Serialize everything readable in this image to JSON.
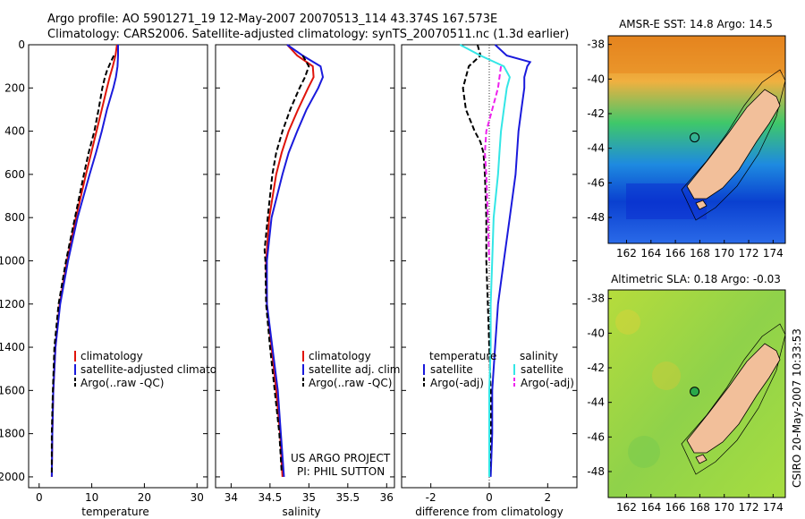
{
  "header": {
    "title_line1": "Argo profile: AO 5901271_19 12-May-2007 20070513_114 43.374S 167.573E",
    "title_line2": "Climatology: CARS2006. Satellite-adjusted climatology: synTS_20070511.nc (1.3d earlier)"
  },
  "side_label": "CSIRO 20-May-2007 10:33:53",
  "colors": {
    "climatology": "#e0140a",
    "satellite": "#1a1adc",
    "argo": "#000000",
    "satellite_salinity_diff": "#33e6e6",
    "argo_salinity_diff": "#ee22ee",
    "land": "#f2bf9a",
    "sst_warm": "#e8902a",
    "sst_mid": "#39c07a",
    "sst_cold": "#0a55d8",
    "sla_field": "#9ad640"
  },
  "chart_data": [
    {
      "type": "line",
      "xlabel": "temperature",
      "xlim": [
        -2,
        32
      ],
      "xticks": [
        "0",
        "10",
        "20",
        "30"
      ],
      "xtick_values": [
        0,
        10,
        20,
        30
      ],
      "ylim": [
        0,
        2050
      ],
      "yticks": [
        "0",
        "200",
        "400",
        "600",
        "800",
        "1000",
        "1200",
        "1400",
        "1600",
        "1800",
        "2000"
      ],
      "ytick_values": [
        0,
        200,
        400,
        600,
        800,
        1000,
        1200,
        1400,
        1600,
        1800,
        2000
      ],
      "legend": [
        "climatology",
        "satellite-adjusted climatology",
        "Argo(..raw -QC)"
      ],
      "series": [
        {
          "name": "climatology",
          "depth": [
            0,
            50,
            100,
            150,
            200,
            300,
            400,
            500,
            600,
            800,
            1000,
            1200,
            1400,
            1600,
            1800,
            2000
          ],
          "values": [
            14.8,
            14.5,
            14.0,
            13.4,
            12.9,
            11.9,
            10.9,
            9.9,
            8.9,
            7.0,
            5.3,
            3.9,
            3.1,
            2.7,
            2.5,
            2.4
          ]
        },
        {
          "name": "satellite-adjusted climatology",
          "depth": [
            0,
            50,
            100,
            150,
            200,
            300,
            400,
            500,
            600,
            800,
            1000,
            1200,
            1400,
            1600,
            1800,
            2000
          ],
          "values": [
            15.0,
            15.0,
            14.9,
            14.6,
            14.1,
            12.9,
            11.9,
            10.8,
            9.6,
            7.3,
            5.5,
            4.0,
            3.1,
            2.7,
            2.5,
            2.4
          ]
        },
        {
          "name": "Argo(..raw -QC)",
          "depth": [
            50,
            80,
            120,
            150,
            200,
            300,
            400,
            500,
            600,
            800,
            1000,
            1200,
            1400,
            1600,
            1800,
            1980
          ],
          "values": [
            14.2,
            13.6,
            12.9,
            12.5,
            12.0,
            11.3,
            10.5,
            9.4,
            8.5,
            6.8,
            5.1,
            3.7,
            2.9,
            2.6,
            2.4,
            2.4
          ]
        }
      ]
    },
    {
      "type": "line",
      "xlabel": "salinity",
      "xlim": [
        33.8,
        36.1
      ],
      "xticks": [
        "34",
        "34.5",
        "35",
        "35.5",
        "36"
      ],
      "xtick_values": [
        34,
        34.5,
        35,
        35.5,
        36
      ],
      "ylim": [
        0,
        2050
      ],
      "legend": [
        "climatology",
        "satellite adj. clim.",
        "Argo(..raw -QC)"
      ],
      "annotation": [
        "US ARGO PROJECT",
        "PI: PHIL SUTTON"
      ],
      "series": [
        {
          "name": "climatology",
          "depth": [
            0,
            50,
            100,
            150,
            200,
            300,
            400,
            500,
            600,
            800,
            1000,
            1200,
            1400,
            1600,
            1800,
            2000
          ],
          "values": [
            34.72,
            34.85,
            35.05,
            35.06,
            34.99,
            34.86,
            34.74,
            34.65,
            34.58,
            34.49,
            34.45,
            34.46,
            34.52,
            34.58,
            34.63,
            34.66
          ]
        },
        {
          "name": "satellite adj. clim.",
          "depth": [
            0,
            50,
            100,
            150,
            200,
            300,
            400,
            500,
            600,
            800,
            1000,
            1200,
            1400,
            1600,
            1800,
            2000
          ],
          "values": [
            34.72,
            34.92,
            35.15,
            35.18,
            35.12,
            34.97,
            34.85,
            34.74,
            34.66,
            34.52,
            34.46,
            34.46,
            34.53,
            34.6,
            34.64,
            34.68
          ]
        },
        {
          "name": "Argo(..raw -QC)",
          "depth": [
            50,
            100,
            150,
            200,
            300,
            400,
            500,
            600,
            800,
            950,
            1000,
            1200,
            1400,
            1600,
            1800,
            1980
          ],
          "values": [
            34.92,
            35.0,
            34.95,
            34.88,
            34.76,
            34.66,
            34.58,
            34.53,
            34.47,
            34.43,
            34.44,
            34.45,
            34.5,
            34.56,
            34.62,
            34.65
          ]
        }
      ]
    },
    {
      "type": "line",
      "xlabel": "difference from climatology",
      "xlim": [
        -3,
        3
      ],
      "xticks": [
        "-2",
        "0",
        "2"
      ],
      "xtick_values": [
        -2,
        0,
        2
      ],
      "ylim": [
        0,
        2050
      ],
      "legend_titles": [
        "temperature",
        "salinity"
      ],
      "legend": [
        "satellite",
        "Argo(-adj)",
        "satellite",
        "Argo(-adj)"
      ],
      "series": [
        {
          "name": "satellite",
          "depth": [
            0,
            50,
            80,
            100,
            150,
            200,
            300,
            400,
            600,
            800,
            1000,
            1200,
            1400,
            1600,
            1800,
            2000
          ],
          "values": [
            0.2,
            0.6,
            1.4,
            1.3,
            1.2,
            1.2,
            1.1,
            1.0,
            0.9,
            0.7,
            0.5,
            0.3,
            0.2,
            0.1,
            0.1,
            0.05
          ]
        },
        {
          "name": "Argo(-adj)",
          "depth": [
            0,
            50,
            100,
            150,
            200,
            300,
            400,
            450,
            500,
            600,
            800,
            1000,
            1200,
            1400,
            1600,
            1800,
            2000
          ],
          "values": [
            -0.4,
            -0.3,
            -0.7,
            -0.8,
            -0.9,
            -0.8,
            -0.5,
            -0.3,
            -0.2,
            -0.15,
            -0.1,
            -0.1,
            -0.05,
            0.0,
            0.05,
            0.05,
            0.0
          ]
        },
        {
          "name": "satellite",
          "depth": [
            0,
            50,
            100,
            150,
            200,
            300,
            400,
            500,
            600,
            800,
            1000,
            1200,
            1400,
            1600,
            1800,
            2000
          ],
          "values": [
            -1.0,
            -0.3,
            0.5,
            0.7,
            0.6,
            0.5,
            0.4,
            0.35,
            0.3,
            0.15,
            0.1,
            0.05,
            0.05,
            0.0,
            0.0,
            0.0
          ]
        },
        {
          "name": "Argo(-adj)",
          "depth": [
            100,
            200,
            300,
            400,
            500,
            600,
            800,
            1000
          ],
          "values": [
            0.4,
            0.3,
            0.1,
            -0.1,
            -0.15,
            -0.1,
            -0.05,
            0.0
          ]
        }
      ]
    },
    {
      "type": "heatmap",
      "title": "AMSR-E SST: 14.8 Argo: 14.5",
      "xticks": [
        "162",
        "164",
        "166",
        "168",
        "170",
        "172",
        "174"
      ],
      "xtick_values": [
        162,
        164,
        166,
        168,
        170,
        172,
        174
      ],
      "yticks": [
        "-38",
        "-40",
        "-42",
        "-44",
        "-46",
        "-48"
      ],
      "ytick_values": [
        -38,
        -40,
        -42,
        -44,
        -46,
        -48
      ],
      "xlim": [
        160.5,
        175
      ],
      "ylim": [
        -49.5,
        -37.5
      ],
      "marker": {
        "lon": 167.573,
        "lat": -43.374
      }
    },
    {
      "type": "heatmap",
      "title": "Altimetric SLA: 0.18 Argo: -0.03",
      "xticks": [
        "162",
        "164",
        "166",
        "168",
        "170",
        "172",
        "174"
      ],
      "xtick_values": [
        162,
        164,
        166,
        168,
        170,
        172,
        174
      ],
      "yticks": [
        "-38",
        "-40",
        "-42",
        "-44",
        "-46",
        "-48"
      ],
      "ytick_values": [
        -38,
        -40,
        -42,
        -44,
        -46,
        -48
      ],
      "xlim": [
        160.5,
        175
      ],
      "ylim": [
        -49.5,
        -37.5
      ],
      "marker": {
        "lon": 167.573,
        "lat": -43.374
      }
    }
  ]
}
